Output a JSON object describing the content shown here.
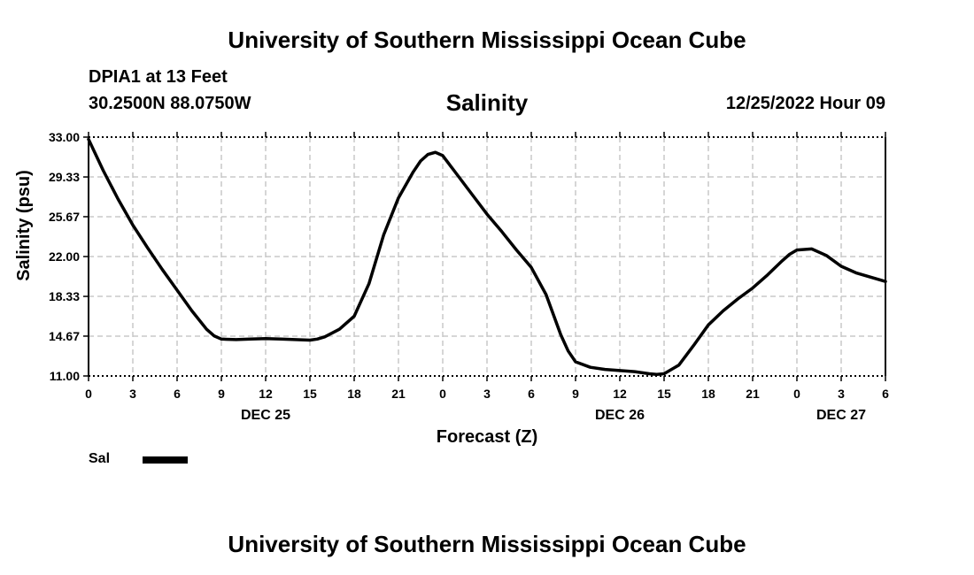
{
  "header": {
    "title": "University of Southern Mississippi Ocean Cube",
    "station": "DPIA1 at 13 Feet",
    "coords": "30.2500N  88.0750W",
    "chart_title": "Salinity",
    "datetime": "12/25/2022 Hour 09"
  },
  "footer": {
    "title": "University of Southern Mississippi Ocean Cube"
  },
  "legend": {
    "label": "Sal",
    "color": "#000000"
  },
  "colors": {
    "line": "#000000",
    "grid": "#c8c8c8",
    "background": "#ffffff"
  },
  "chart_data": {
    "type": "line",
    "title": "Salinity",
    "xlabel": "Forecast (Z)",
    "ylabel": "Salinity (psu)",
    "ylim": [
      11.0,
      33.0
    ],
    "xlim": [
      0,
      54
    ],
    "y_ticks": [
      "11.00",
      "14.67",
      "18.33",
      "22.00",
      "25.67",
      "29.33",
      "33.00"
    ],
    "x_ticks": [
      "0",
      "3",
      "6",
      "9",
      "12",
      "15",
      "18",
      "21",
      "0",
      "3",
      "6",
      "9",
      "12",
      "15",
      "18",
      "21",
      "0",
      "3",
      "6"
    ],
    "date_labels": [
      {
        "text": "DEC 25",
        "hour": 12
      },
      {
        "text": "DEC 26",
        "hour": 36
      },
      {
        "text": "DEC 27",
        "hour": 51
      }
    ],
    "grid": true,
    "legend_position": "bottom-left",
    "series": [
      {
        "name": "Sal",
        "x": [
          0,
          1,
          2,
          3,
          4,
          5,
          6,
          7,
          8,
          8.5,
          9,
          10,
          11,
          12,
          13,
          14,
          15,
          15.5,
          16,
          17,
          18,
          19,
          20,
          21,
          22,
          22.5,
          23,
          23.5,
          24,
          25,
          26,
          27,
          28,
          29,
          30,
          31,
          32,
          32.5,
          33,
          34,
          35,
          36,
          37,
          38,
          38.5,
          39,
          40,
          41,
          42,
          43,
          44,
          45,
          46,
          47,
          47.5,
          48,
          49,
          50,
          51,
          52,
          53,
          54
        ],
        "y": [
          32.8,
          29.9,
          27.3,
          24.9,
          22.8,
          20.8,
          18.9,
          17.0,
          15.3,
          14.7,
          14.4,
          14.35,
          14.4,
          14.45,
          14.4,
          14.35,
          14.3,
          14.4,
          14.6,
          15.3,
          16.5,
          19.5,
          24.0,
          27.4,
          29.8,
          30.8,
          31.4,
          31.6,
          31.3,
          29.5,
          27.7,
          25.9,
          24.3,
          22.6,
          21.0,
          18.5,
          14.8,
          13.3,
          12.3,
          11.8,
          11.6,
          11.5,
          11.4,
          11.2,
          11.15,
          11.2,
          12.0,
          13.8,
          15.7,
          17.0,
          18.1,
          19.1,
          20.3,
          21.6,
          22.2,
          22.6,
          22.7,
          22.1,
          21.1,
          20.5,
          20.1,
          19.7
        ]
      }
    ]
  }
}
